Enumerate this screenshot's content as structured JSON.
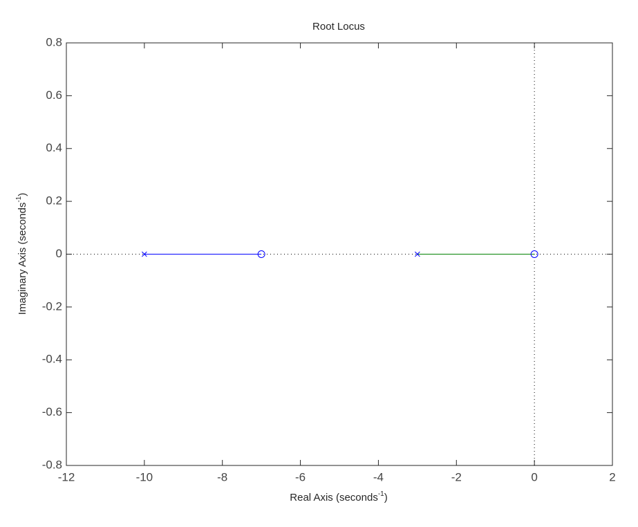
{
  "chart_data": {
    "type": "rootlocus",
    "title": "Root Locus",
    "xlabel": [
      "Real Axis (seconds",
      "-1",
      ")"
    ],
    "ylabel": [
      "Imaginary Axis (seconds",
      "-1",
      ")"
    ],
    "xlim": [
      -12,
      2
    ],
    "xticks": [
      -12,
      -10,
      -8,
      -6,
      -4,
      -2,
      0,
      2
    ],
    "ylim": [
      -0.8,
      0.8
    ],
    "yticks": [
      -0.8,
      -0.6,
      -0.4,
      -0.2,
      0,
      0.2,
      0.4,
      0.6,
      0.8
    ],
    "series": [
      {
        "color": "#0000ff",
        "x": [
          -10,
          -7
        ],
        "y": [
          0,
          0
        ]
      },
      {
        "color": "#008000",
        "x": [
          -3,
          0
        ],
        "y": [
          0,
          0
        ]
      }
    ],
    "poles": {
      "color": "#0000ff",
      "x": [
        -10,
        -3
      ],
      "y": [
        0,
        0
      ]
    },
    "zeros": {
      "color": "#0000ff",
      "x": [
        -7,
        0
      ],
      "y": [
        0,
        0
      ]
    }
  }
}
